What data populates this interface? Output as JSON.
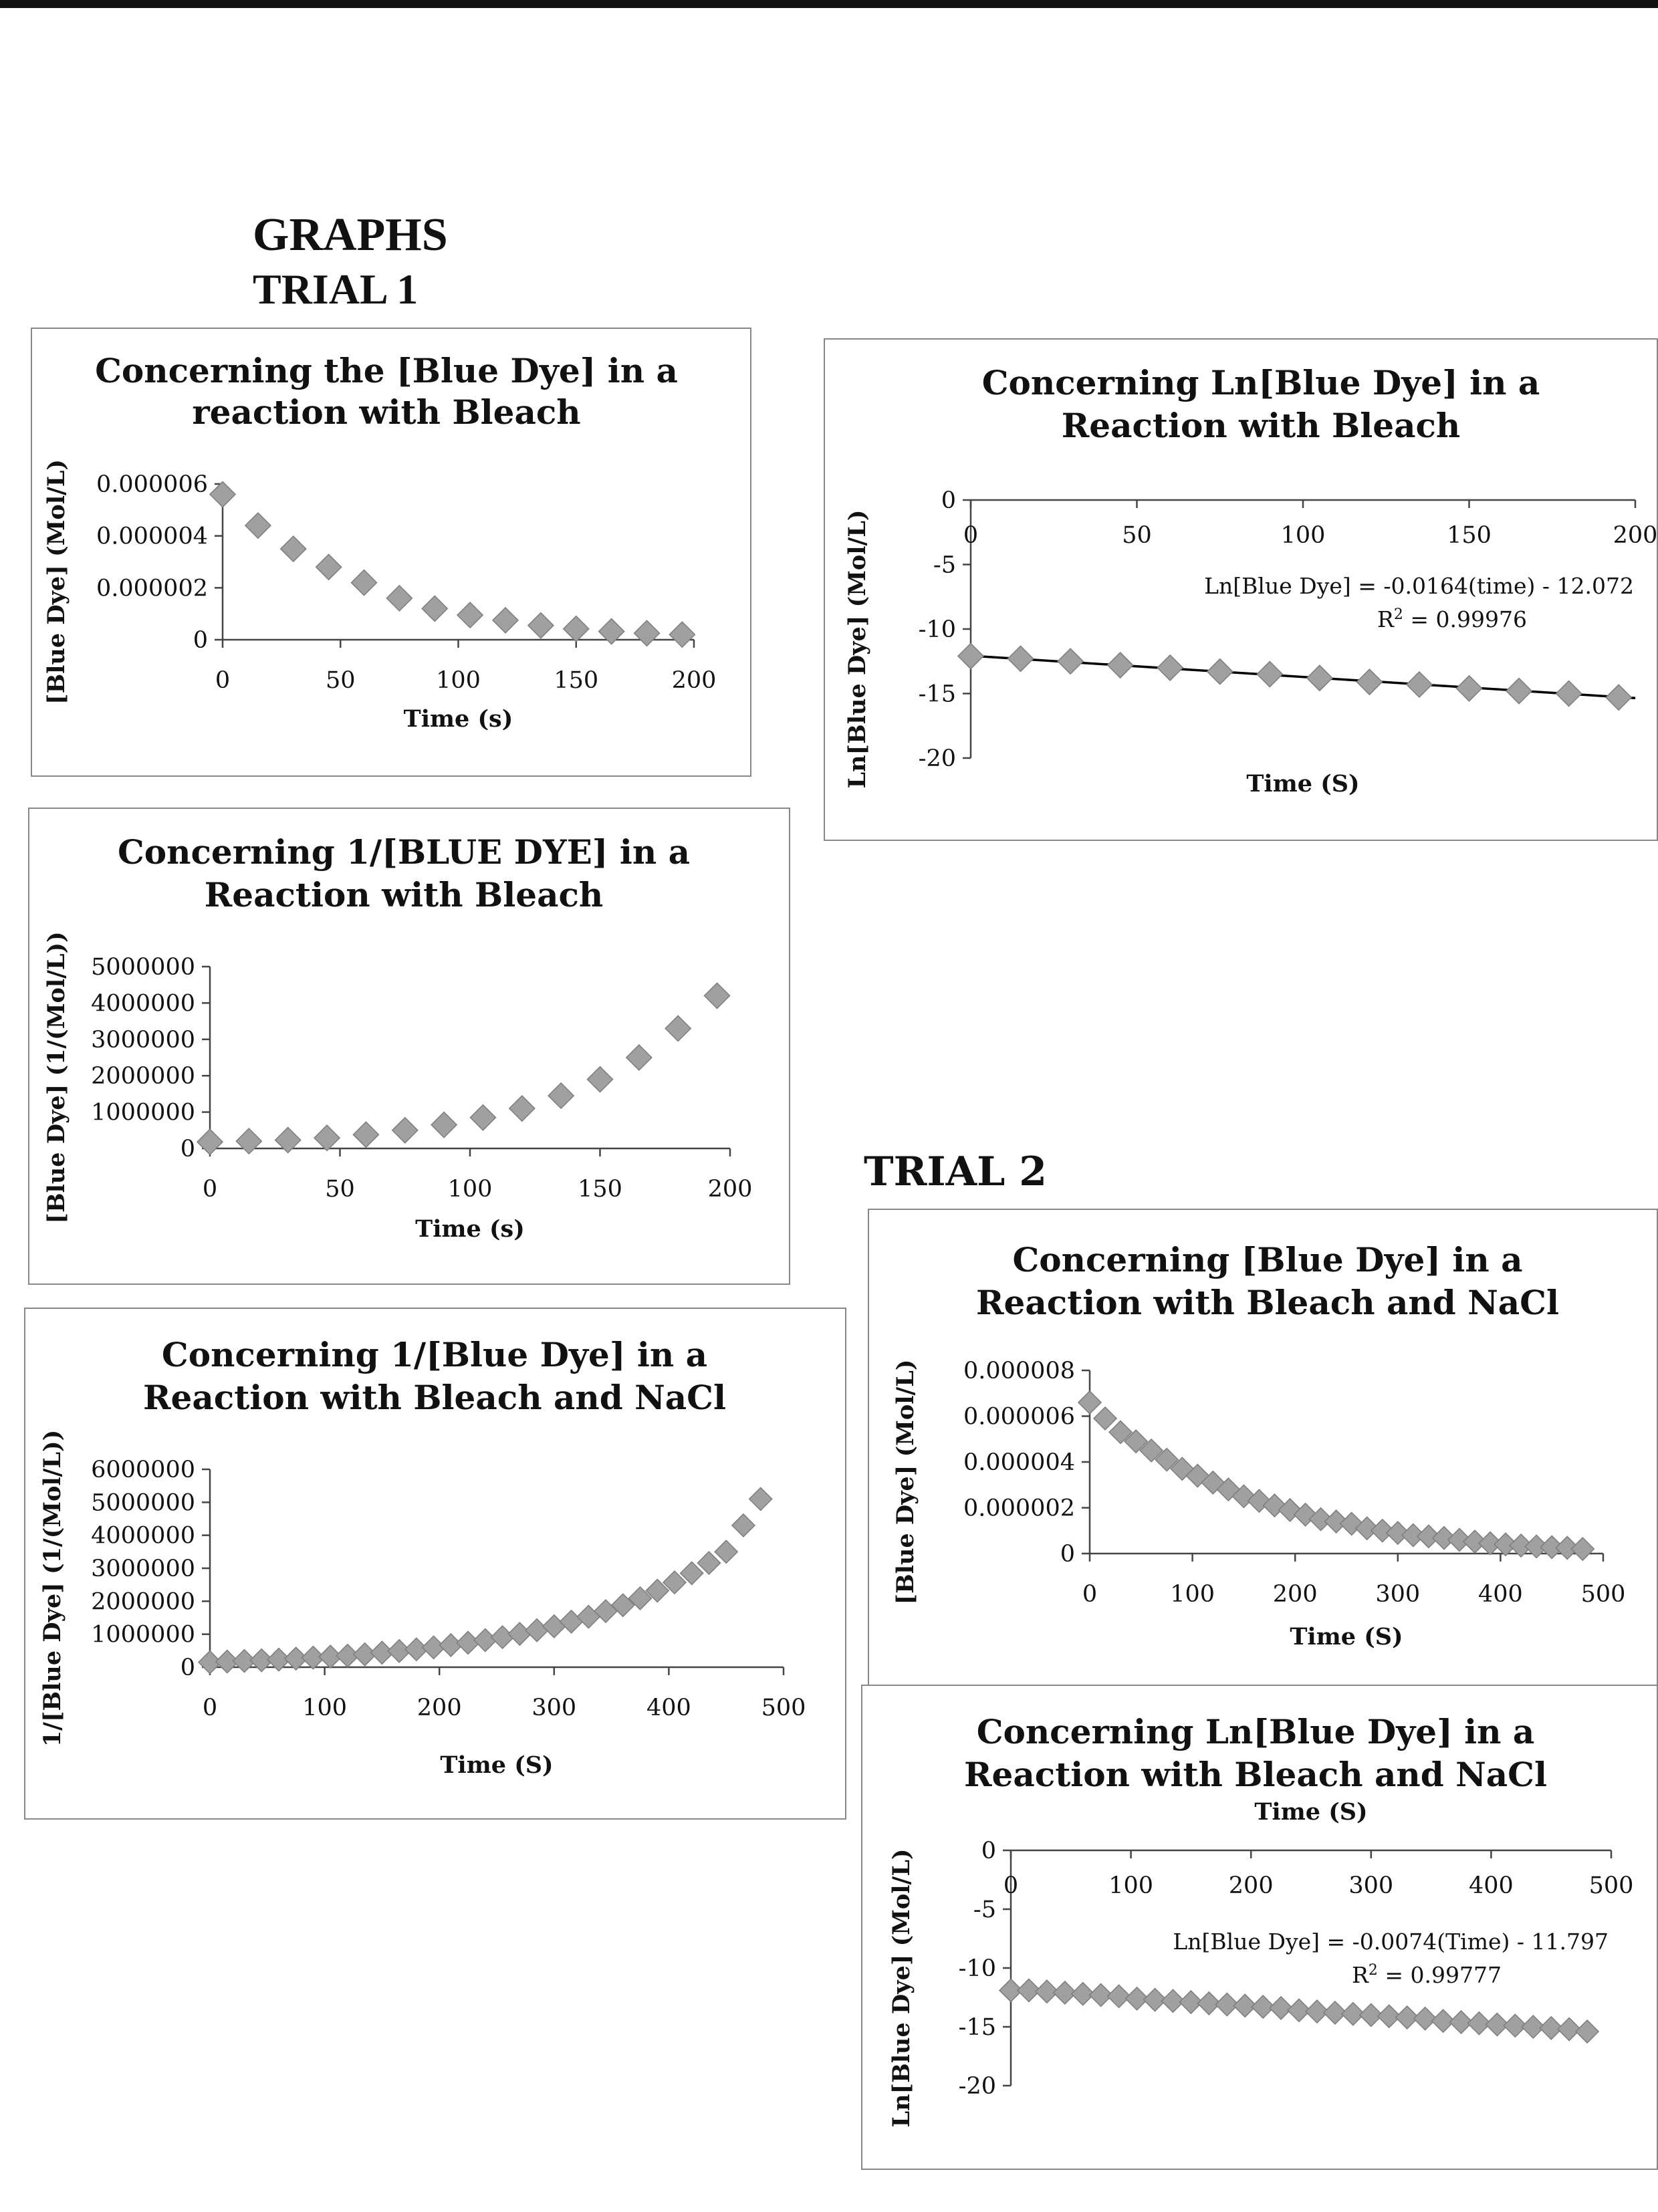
{
  "page": {
    "graphs_heading": "GRAPHS",
    "trial1_heading": "TRIAL 1",
    "trial2_heading": "TRIAL 2"
  },
  "colors": {
    "marker": "#a0a0a0",
    "marker_edge": "#7d7d7d",
    "trendline": "#000000",
    "axis": "#444444"
  },
  "chart_data": [
    {
      "id": "t1-conc",
      "type": "scatter",
      "title": "Concerning the [Blue Dye] in a reaction with Bleach",
      "title_lines": [
        "Concerning the [Blue Dye] in a",
        "reaction with Bleach"
      ],
      "xlabel": "Time (s)",
      "ylabel": "[Blue Dye] (Mol/L)",
      "xlim": [
        0,
        200
      ],
      "ylim": [
        0,
        6e-06
      ],
      "x_ticks": [
        "0",
        "50",
        "100",
        "150",
        "200"
      ],
      "y_ticks": [
        "0",
        "0.000002",
        "0.000004",
        "0.000006"
      ],
      "marker": "diamond",
      "x": [
        0,
        15,
        30,
        45,
        60,
        75,
        90,
        105,
        120,
        135,
        150,
        165,
        180,
        195
      ],
      "y": [
        5.6e-06,
        4.4e-06,
        3.5e-06,
        2.8e-06,
        2.2e-06,
        1.6e-06,
        1.2e-06,
        9.5e-07,
        7.5e-07,
        5.5e-07,
        4.2e-07,
        3.2e-07,
        2.5e-07,
        2e-07
      ]
    },
    {
      "id": "t1-ln",
      "type": "line",
      "title": "Concerning Ln[Blue Dye] in a Reaction with Bleach",
      "title_lines": [
        "Concerning Ln[Blue Dye] in a",
        "Reaction with Bleach"
      ],
      "xlabel": "Time (S)",
      "ylabel": "Ln[Blue Dye] (Mol/L)",
      "xlim": [
        0,
        200
      ],
      "ylim": [
        -20,
        0
      ],
      "x_ticks": [
        "0",
        "50",
        "100",
        "150",
        "200"
      ],
      "y_ticks": [
        "0",
        "-5",
        "-10",
        "-15",
        "-20"
      ],
      "marker": "diamond",
      "trendline": {
        "slope": -0.0164,
        "intercept": -12.072,
        "x_range": [
          0,
          200
        ]
      },
      "equation": "Ln[Blue Dye] = -0.0164(time) - 12.072",
      "r2_prefix": "R",
      "r2_sup": "2",
      "r2_value": " = 0.99976",
      "x": [
        0,
        15,
        30,
        45,
        60,
        75,
        90,
        105,
        120,
        135,
        150,
        165,
        180,
        195
      ],
      "y": [
        -12.1,
        -12.3,
        -12.5,
        -12.8,
        -13.0,
        -13.3,
        -13.5,
        -13.8,
        -14.1,
        -14.3,
        -14.6,
        -14.8,
        -15.0,
        -15.3
      ]
    },
    {
      "id": "t1-inv",
      "type": "scatter",
      "title": "Concerning 1/[BLUE DYE] in a Reaction with Bleach",
      "title_lines": [
        "Concerning 1/[BLUE DYE] in a",
        "Reaction with Bleach"
      ],
      "xlabel": "Time (s)",
      "ylabel": "[Blue Dye] (1/(Mol/L))",
      "xlim": [
        0,
        200
      ],
      "ylim": [
        0,
        5000000
      ],
      "x_ticks": [
        "0",
        "50",
        "100",
        "150",
        "200"
      ],
      "y_ticks": [
        "0",
        "1000000",
        "2000000",
        "3000000",
        "4000000",
        "5000000"
      ],
      "marker": "diamond",
      "x": [
        0,
        15,
        30,
        45,
        60,
        75,
        90,
        105,
        120,
        135,
        150,
        165,
        180,
        195
      ],
      "y": [
        180000,
        200000,
        230000,
        290000,
        380000,
        500000,
        650000,
        850000,
        1100000,
        1450000,
        1900000,
        2500000,
        3300000,
        4200000
      ]
    },
    {
      "id": "t2-inv",
      "type": "scatter",
      "title": "Concerning 1/[Blue Dye] in a Reaction with Bleach and NaCl",
      "title_lines": [
        "Concerning 1/[Blue Dye] in a",
        "Reaction with Bleach and NaCl"
      ],
      "xlabel": "Time (S)",
      "ylabel": "1/[Blue Dye] (1/(Mol/L))",
      "xlim": [
        0,
        500
      ],
      "ylim": [
        0,
        6000000
      ],
      "x_ticks": [
        "0",
        "100",
        "200",
        "300",
        "400",
        "500"
      ],
      "y_ticks": [
        "0",
        "1000000",
        "2000000",
        "3000000",
        "4000000",
        "5000000",
        "6000000"
      ],
      "marker": "diamond",
      "x": [
        0,
        15,
        30,
        45,
        60,
        75,
        90,
        105,
        120,
        135,
        150,
        165,
        180,
        195,
        210,
        225,
        240,
        255,
        270,
        285,
        300,
        315,
        330,
        345,
        360,
        375,
        390,
        405,
        420,
        435,
        450,
        465,
        480
      ],
      "y": [
        150000,
        170000,
        190000,
        210000,
        230000,
        260000,
        290000,
        320000,
        350000,
        390000,
        440000,
        490000,
        540000,
        600000,
        670000,
        740000,
        820000,
        910000,
        1010000,
        1120000,
        1240000,
        1380000,
        1530000,
        1700000,
        1880000,
        2090000,
        2320000,
        2570000,
        2850000,
        3160000,
        3500000,
        4300000,
        5100000
      ]
    },
    {
      "id": "t2-conc",
      "type": "scatter",
      "title": "Concerning [Blue Dye] in a Reaction with Bleach and NaCl",
      "title_lines": [
        "Concerning [Blue Dye] in a",
        "Reaction with Bleach and NaCl"
      ],
      "xlabel": "Time (S)",
      "ylabel": "[Blue Dye] (Mol/L)",
      "xlim": [
        0,
        500
      ],
      "ylim": [
        0,
        8e-06
      ],
      "x_ticks": [
        "0",
        "100",
        "200",
        "300",
        "400",
        "500"
      ],
      "y_ticks": [
        "0",
        "0.000002",
        "0.000004",
        "0.000006",
        "0.000008"
      ],
      "marker": "diamond",
      "x": [
        0,
        15,
        30,
        45,
        60,
        75,
        90,
        105,
        120,
        135,
        150,
        165,
        180,
        195,
        210,
        225,
        240,
        255,
        270,
        285,
        300,
        315,
        330,
        345,
        360,
        375,
        390,
        405,
        420,
        435,
        450,
        465,
        480
      ],
      "y": [
        6.6e-06,
        5.9e-06,
        5.3e-06,
        4.9e-06,
        4.5e-06,
        4.1e-06,
        3.7e-06,
        3.4e-06,
        3.1e-06,
        2.8e-06,
        2.5e-06,
        2.3e-06,
        2.1e-06,
        1.9e-06,
        1.7e-06,
        1.5e-06,
        1.4e-06,
        1.3e-06,
        1.1e-06,
        1e-06,
        9e-07,
        8e-07,
        7.5e-07,
        6.8e-07,
        6e-07,
        5.2e-07,
        4.5e-07,
        4e-07,
        3.5e-07,
        3.1e-07,
        2.8e-07,
        2.5e-07,
        2e-07
      ]
    },
    {
      "id": "t2-ln",
      "type": "line",
      "title": "Concerning Ln[Blue Dye] in a Reaction with Bleach and NaCl",
      "title_lines": [
        "Concerning Ln[Blue Dye] in a",
        "Reaction with Bleach and NaCl"
      ],
      "xlabel": "Time (S)",
      "ylabel": "Ln[Blue Dye] (Mol/L)",
      "xlim": [
        0,
        500
      ],
      "ylim": [
        -20,
        0
      ],
      "x_ticks": [
        "0",
        "100",
        "200",
        "300",
        "400",
        "500"
      ],
      "y_ticks": [
        "0",
        "-5",
        "-10",
        "-15",
        "-20"
      ],
      "marker": "diamond",
      "trendline": {
        "slope": -0.0074,
        "intercept": -11.797,
        "x_range": [
          0,
          480
        ]
      },
      "equation": "Ln[Blue Dye] = -0.0074(Time) - 11.797",
      "r2_prefix": "R",
      "r2_sup": "2",
      "r2_value": " = 0.99777",
      "x": [
        0,
        15,
        30,
        45,
        60,
        75,
        90,
        105,
        120,
        135,
        150,
        165,
        180,
        195,
        210,
        225,
        240,
        255,
        270,
        285,
        300,
        315,
        330,
        345,
        360,
        375,
        390,
        405,
        420,
        435,
        450,
        465,
        480
      ],
      "y": [
        -11.9,
        -11.9,
        -12.0,
        -12.1,
        -12.2,
        -12.3,
        -12.4,
        -12.6,
        -12.7,
        -12.8,
        -12.9,
        -13.0,
        -13.1,
        -13.2,
        -13.3,
        -13.4,
        -13.6,
        -13.7,
        -13.8,
        -13.9,
        -14.0,
        -14.1,
        -14.2,
        -14.3,
        -14.5,
        -14.6,
        -14.7,
        -14.8,
        -14.9,
        -15.0,
        -15.1,
        -15.2,
        -15.4
      ]
    }
  ]
}
